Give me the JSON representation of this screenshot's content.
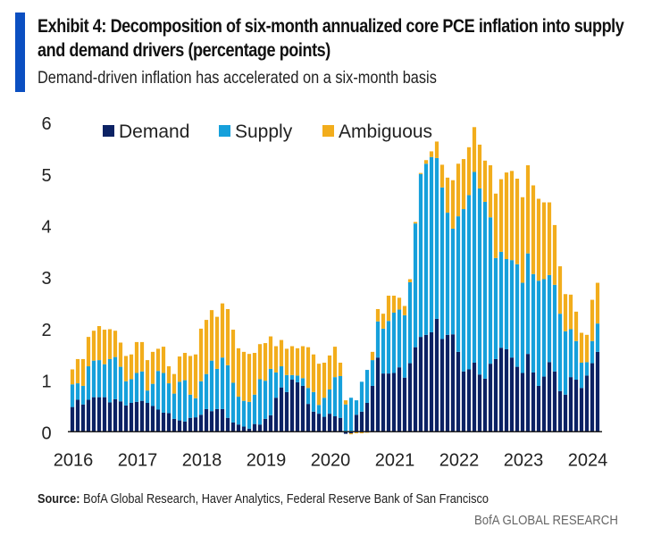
{
  "header": {
    "title": "Exhibit 4: Decomposition of six-month annualized core PCE inflation into supply and demand drivers (percentage points)",
    "subtitle": "Demand-driven inflation has accelerated on a six-month basis"
  },
  "footer": {
    "source_label": "Source:",
    "source_text": " BofA Global Research, Haver Analytics, Federal Reserve Bank of San Francisco",
    "brand": "BofA GLOBAL RESEARCH"
  },
  "colors": {
    "accent": "#0b4fc1",
    "demand": "#0c2264",
    "supply": "#16a0db",
    "ambiguous": "#f2ad1c"
  },
  "chart_data": {
    "type": "bar",
    "stacked": true,
    "title": "Decomposition of six-month annualized core PCE inflation into supply and demand drivers (percentage points)",
    "xlabel": "",
    "ylabel": "",
    "ylim": [
      0,
      6
    ],
    "yticks": [
      0,
      1,
      2,
      3,
      4,
      5,
      6
    ],
    "xtick_labels": [
      "2016",
      "2017",
      "2018",
      "2019",
      "2020",
      "2021",
      "2022",
      "2023",
      "2024"
    ],
    "legend": [
      "Demand",
      "Supply",
      "Ambiguous"
    ],
    "legend_position": "top-left",
    "grid": false,
    "frequency": "monthly",
    "start": "2016-01",
    "end": "2024-03",
    "series": [
      {
        "name": "Demand",
        "values": [
          0.48,
          0.62,
          0.53,
          0.62,
          0.67,
          0.67,
          0.67,
          0.57,
          0.63,
          0.59,
          0.51,
          0.56,
          0.58,
          0.6,
          0.56,
          0.5,
          0.43,
          0.37,
          0.36,
          0.25,
          0.22,
          0.2,
          0.27,
          0.28,
          0.33,
          0.44,
          0.4,
          0.44,
          0.44,
          0.27,
          0.18,
          0.14,
          0.1,
          0.06,
          0.15,
          0.14,
          0.25,
          0.32,
          0.66,
          0.86,
          0.77,
          1.01,
          0.96,
          0.89,
          0.54,
          0.39,
          0.35,
          0.29,
          0.35,
          0.3,
          0.27,
          -0.04,
          -0.03,
          0.33,
          0.39,
          0.56,
          0.89,
          1.44,
          1.13,
          1.13,
          1.14,
          1.25,
          1.05,
          1.33,
          1.64,
          1.84,
          1.88,
          1.93,
          2.19,
          1.8,
          1.88,
          1.89,
          1.55,
          1.17,
          1.21,
          1.34,
          1.11,
          1.03,
          1.32,
          1.41,
          1.63,
          1.6,
          1.44,
          1.26,
          1.14,
          1.51,
          1.15,
          0.89,
          1.07,
          1.35,
          1.17,
          0.79,
          0.72,
          1.06,
          1.01,
          0.85,
          1.09,
          1.33,
          1.55
        ]
      },
      {
        "name": "Supply",
        "values": [
          0.44,
          0.32,
          0.36,
          0.65,
          0.71,
          0.72,
          0.64,
          0.84,
          0.82,
          0.67,
          0.47,
          0.46,
          0.56,
          0.57,
          0.24,
          0.43,
          0.75,
          0.77,
          0.58,
          0.49,
          0.75,
          0.8,
          0.45,
          0.37,
          0.65,
          0.68,
          0.98,
          0.78,
          1.0,
          1.02,
          0.77,
          0.54,
          0.5,
          0.52,
          0.57,
          0.88,
          0.74,
          0.9,
          0.49,
          0.41,
          0.33,
          0.09,
          0.13,
          0.15,
          0.31,
          0.38,
          0.17,
          0.37,
          0.47,
          0.76,
          0.81,
          0.53,
          0.66,
          0.28,
          0.58,
          0.64,
          0.5,
          0.7,
          0.87,
          1.02,
          1.17,
          1.12,
          1.21,
          1.57,
          2.4,
          3.16,
          3.32,
          3.4,
          3.12,
          2.94,
          2.37,
          2.05,
          2.63,
          3.15,
          3.38,
          3.7,
          3.61,
          3.43,
          2.84,
          1.96,
          1.86,
          1.75,
          1.89,
          1.99,
          1.75,
          1.95,
          1.91,
          2.04,
          1.89,
          1.69,
          1.68,
          1.5,
          1.23,
          0.93,
          0.75,
          0.49,
          0.26,
          0.43,
          0.55
        ]
      },
      {
        "name": "Ambiguous",
        "values": [
          0.29,
          0.47,
          0.52,
          0.57,
          0.58,
          0.66,
          0.67,
          0.58,
          0.51,
          0.47,
          0.49,
          0.48,
          0.6,
          0.57,
          0.59,
          0.62,
          0.43,
          0.51,
          0.33,
          0.38,
          0.49,
          0.53,
          0.75,
          0.85,
          1.02,
          1.05,
          0.98,
          1.01,
          1.05,
          1.09,
          1.03,
          0.94,
          0.95,
          0.93,
          0.81,
          0.68,
          0.73,
          0.63,
          0.51,
          0.51,
          0.51,
          0.56,
          0.53,
          0.62,
          0.79,
          0.73,
          0.8,
          0.68,
          0.66,
          0.59,
          0.26,
          0.08,
          -0.02,
          -0.03,
          -0.03,
          -0.02,
          0.16,
          0.24,
          0.29,
          0.49,
          0.33,
          0.23,
          0.18,
          0.06,
          0.03,
          0.02,
          0.07,
          0.11,
          0.32,
          0.44,
          0.68,
          0.94,
          1.02,
          0.97,
          0.93,
          0.87,
          0.85,
          0.8,
          1.01,
          1.25,
          1.41,
          1.68,
          1.73,
          1.66,
          1.66,
          1.71,
          1.72,
          1.59,
          1.49,
          1.41,
          1.16,
          0.92,
          0.72,
          0.67,
          0.57,
          0.58,
          0.53,
          0.8,
          0.79
        ]
      }
    ]
  }
}
